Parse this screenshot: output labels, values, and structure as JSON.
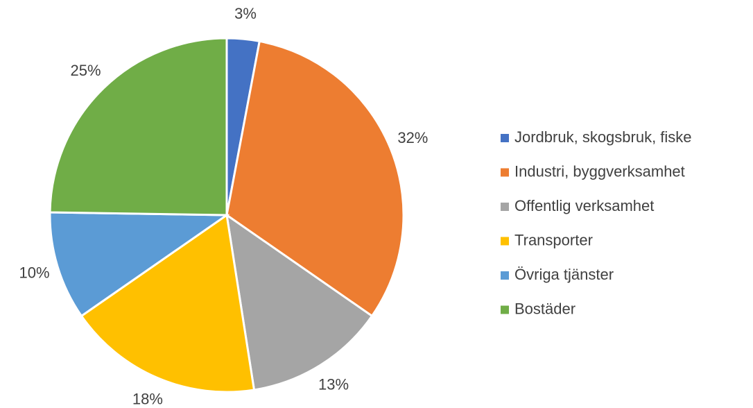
{
  "chart_data": {
    "type": "pie",
    "categories": [
      "Jordbruk, skogsbruk, fiske",
      "Industri, byggverksamhet",
      "Offentlig verksamhet",
      "Transporter",
      "Övriga tjänster",
      "Bostäder"
    ],
    "values": [
      3,
      32,
      13,
      18,
      10,
      25
    ],
    "value_labels": [
      "3%",
      "32%",
      "13%",
      "18%",
      "10%",
      "25%"
    ],
    "colors": [
      "#4472c4",
      "#ed7d31",
      "#a5a5a5",
      "#ffc000",
      "#5b9bd5",
      "#70ad47"
    ],
    "legend": "right"
  }
}
